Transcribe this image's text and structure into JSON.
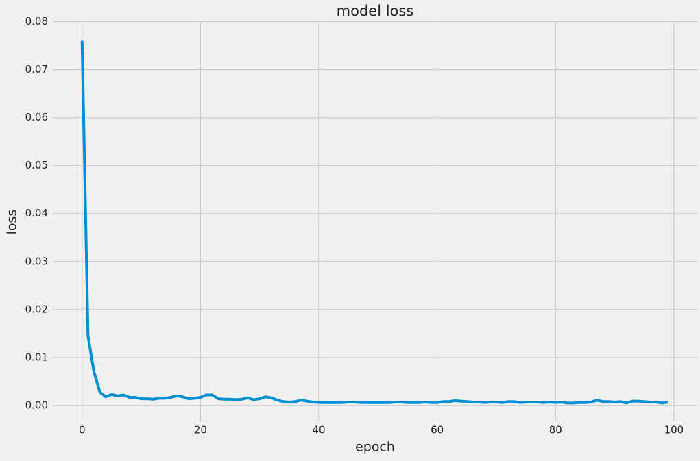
{
  "chart_data": {
    "type": "line",
    "title": "model loss",
    "x_label": "epoch",
    "y_label": "loss",
    "x": [
      0,
      1,
      2,
      3,
      4,
      5,
      6,
      7,
      8,
      9,
      10,
      11,
      12,
      13,
      14,
      15,
      16,
      17,
      18,
      19,
      20,
      21,
      22,
      23,
      24,
      25,
      26,
      27,
      28,
      29,
      30,
      31,
      32,
      33,
      34,
      35,
      36,
      37,
      38,
      39,
      40,
      41,
      42,
      43,
      44,
      45,
      46,
      47,
      48,
      49,
      50,
      51,
      52,
      53,
      54,
      55,
      56,
      57,
      58,
      59,
      60,
      61,
      62,
      63,
      64,
      65,
      66,
      67,
      68,
      69,
      70,
      71,
      72,
      73,
      74,
      75,
      76,
      77,
      78,
      79,
      80,
      81,
      82,
      83,
      84,
      85,
      86,
      87,
      88,
      89,
      90,
      91,
      92,
      93,
      94,
      95,
      96,
      97,
      98,
      99
    ],
    "values": [
      0.076,
      0.0145,
      0.007,
      0.0028,
      0.0018,
      0.0023,
      0.002,
      0.0022,
      0.0017,
      0.0017,
      0.0014,
      0.0014,
      0.0013,
      0.0015,
      0.0015,
      0.0017,
      0.002,
      0.0018,
      0.0014,
      0.0015,
      0.0017,
      0.0022,
      0.0022,
      0.0014,
      0.0013,
      0.0013,
      0.0012,
      0.0013,
      0.0016,
      0.0012,
      0.0014,
      0.0018,
      0.0016,
      0.0011,
      0.0008,
      0.0007,
      0.0008,
      0.0011,
      0.0009,
      0.0007,
      0.0006,
      0.0006,
      0.0006,
      0.0006,
      0.0006,
      0.0007,
      0.0007,
      0.0006,
      0.0006,
      0.0006,
      0.0006,
      0.0006,
      0.0006,
      0.0007,
      0.0007,
      0.0006,
      0.0006,
      0.0006,
      0.0007,
      0.0006,
      0.0006,
      0.0008,
      0.0008,
      0.001,
      0.0009,
      0.0008,
      0.0007,
      0.0007,
      0.0006,
      0.0007,
      0.0007,
      0.0006,
      0.0008,
      0.0008,
      0.0006,
      0.0007,
      0.0007,
      0.0007,
      0.0006,
      0.0007,
      0.0006,
      0.0007,
      0.0005,
      0.0005,
      0.0006,
      0.0006,
      0.0007,
      0.0011,
      0.0008,
      0.0008,
      0.0007,
      0.0008,
      0.0005,
      0.0009,
      0.0009,
      0.0008,
      0.0007,
      0.0007,
      0.0005,
      0.0007
    ],
    "color": "#008fd5",
    "xlim": [
      -4.95,
      103.95
    ],
    "xticks": [
      0,
      20,
      40,
      60,
      80,
      100
    ],
    "ylim": [
      -0.0033,
      0.0798
    ],
    "yticks": [
      {
        "value": 0,
        "label": "0.00"
      },
      {
        "value": 0.01,
        "label": "0.01"
      },
      {
        "value": 0.02,
        "label": "0.02"
      },
      {
        "value": 0.03,
        "label": "0.03"
      },
      {
        "value": 0.04,
        "label": "0.04"
      },
      {
        "value": 0.05,
        "label": "0.05"
      },
      {
        "value": 0.06,
        "label": "0.06"
      },
      {
        "value": 0.07,
        "label": "0.07"
      },
      {
        "value": 0.08,
        "label": "0.08"
      }
    ],
    "grid": true
  }
}
